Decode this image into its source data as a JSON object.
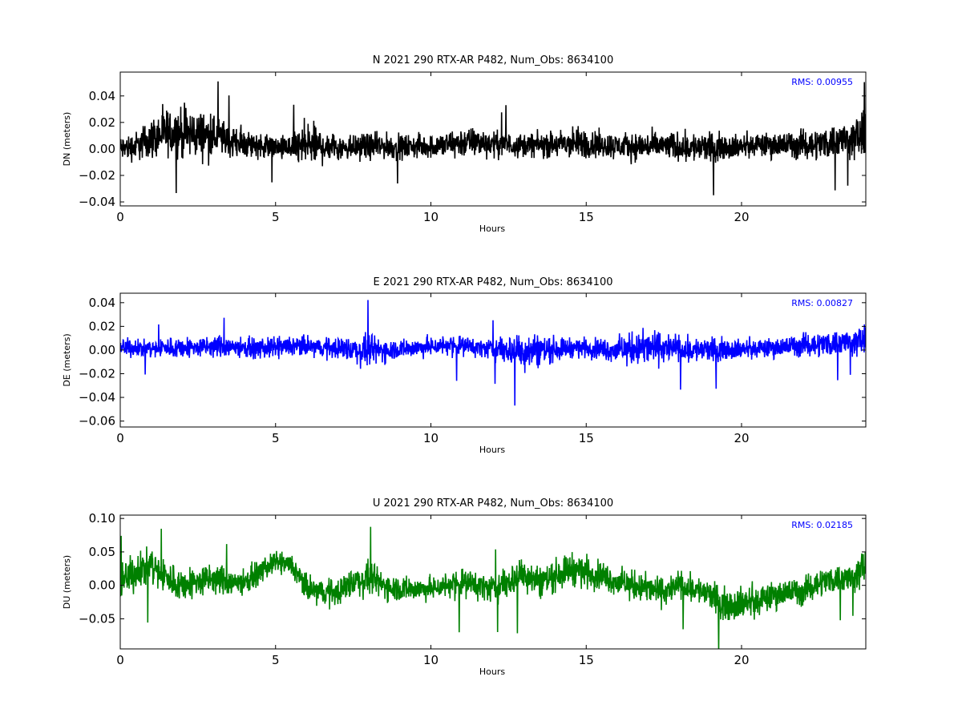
{
  "chart_data": [
    {
      "type": "line",
      "title": "N 2021 290 RTX-AR  P482, Num_Obs: 8634100",
      "xlabel": "Hours",
      "ylabel": "DN (meters)",
      "xlim": [
        0,
        24
      ],
      "ylim": [
        -0.043,
        0.058
      ],
      "xticks": [
        0,
        5,
        10,
        15,
        20
      ],
      "yticks": [
        -0.04,
        -0.02,
        0.0,
        0.02,
        0.04
      ],
      "ytick_labels": [
        "−0.04",
        "−0.02",
        "0.00",
        "0.02",
        "0.04"
      ],
      "grid": false,
      "legend": "none",
      "color": "#000000",
      "annotation": "RMS:  0.00955",
      "annotation_color": "#0000ff",
      "series": [
        {
          "x": [
            0,
            0.5,
            1,
            1.5,
            2,
            2.5,
            3,
            3.5,
            4,
            4.5,
            5,
            5.5,
            6,
            6.5,
            7,
            7.5,
            8,
            8.5,
            9,
            9.5,
            10,
            10.5,
            11,
            11.5,
            12,
            12.5,
            13,
            13.5,
            14,
            14.5,
            15,
            15.5,
            16,
            16.5,
            17,
            17.5,
            18,
            18.5,
            19,
            19.5,
            20,
            20.5,
            21,
            21.5,
            22,
            22.5,
            23,
            23.5,
            24
          ],
          "center": [
            0.0,
            0.002,
            0.008,
            0.012,
            0.012,
            0.011,
            0.01,
            0.006,
            0.004,
            0.003,
            0.001,
            0.0,
            0.003,
            0.002,
            0.002,
            0.002,
            0.002,
            0.002,
            0.001,
            0.002,
            0.002,
            0.003,
            0.005,
            0.005,
            0.004,
            0.003,
            0.003,
            0.003,
            0.003,
            0.004,
            0.004,
            0.003,
            0.002,
            0.002,
            0.002,
            0.002,
            0.002,
            0.001,
            0.001,
            0.002,
            0.002,
            0.003,
            0.003,
            0.003,
            0.003,
            0.004,
            0.006,
            0.008,
            0.01
          ],
          "spread": [
            0.014,
            0.016,
            0.022,
            0.026,
            0.028,
            0.026,
            0.025,
            0.018,
            0.016,
            0.014,
            0.012,
            0.016,
            0.026,
            0.02,
            0.016,
            0.014,
            0.014,
            0.014,
            0.014,
            0.013,
            0.013,
            0.015,
            0.017,
            0.016,
            0.014,
            0.013,
            0.013,
            0.013,
            0.015,
            0.018,
            0.017,
            0.015,
            0.014,
            0.015,
            0.016,
            0.015,
            0.016,
            0.017,
            0.016,
            0.014,
            0.013,
            0.013,
            0.014,
            0.015,
            0.016,
            0.017,
            0.019,
            0.022,
            0.024
          ]
        }
      ]
    },
    {
      "type": "line",
      "title": "E 2021 290 RTX-AR  P482, Num_Obs: 8634100",
      "xlabel": "Hours",
      "ylabel": "DE (meters)",
      "xlim": [
        0,
        24
      ],
      "ylim": [
        -0.065,
        0.048
      ],
      "xticks": [
        0,
        5,
        10,
        15,
        20
      ],
      "yticks": [
        -0.06,
        -0.04,
        -0.02,
        0.0,
        0.02,
        0.04
      ],
      "ytick_labels": [
        "−0.06",
        "−0.04",
        "−0.02",
        "0.00",
        "0.02",
        "0.04"
      ],
      "grid": false,
      "legend": "none",
      "color": "#0000ff",
      "annotation": "RMS:  0.00827",
      "annotation_color": "#0000ff",
      "series": [
        {
          "x": [
            0,
            0.5,
            1,
            1.5,
            2,
            2.5,
            3,
            3.5,
            4,
            4.5,
            5,
            5.5,
            6,
            6.5,
            7,
            7.5,
            8,
            8.5,
            9,
            9.5,
            10,
            10.5,
            11,
            11.5,
            12,
            12.5,
            13,
            13.5,
            14,
            14.5,
            15,
            15.5,
            16,
            16.5,
            17,
            17.5,
            18,
            18.5,
            19,
            19.5,
            20,
            20.5,
            21,
            21.5,
            22,
            22.5,
            23,
            23.5,
            24
          ],
          "center": [
            0.002,
            0.002,
            0.001,
            0.002,
            0.002,
            0.002,
            0.003,
            0.003,
            0.002,
            0.001,
            0.002,
            0.003,
            0.003,
            0.002,
            0.002,
            0.0,
            -0.001,
            0.0,
            0.001,
            0.002,
            0.003,
            0.004,
            0.004,
            0.002,
            0.001,
            0.0,
            0.0,
            0.0,
            0.001,
            0.002,
            0.002,
            0.001,
            0.0,
            0.001,
            0.002,
            0.002,
            0.001,
            0.0,
            0.0,
            0.001,
            0.001,
            0.001,
            0.002,
            0.003,
            0.004,
            0.005,
            0.006,
            0.007,
            0.008
          ],
          "spread": [
            0.012,
            0.011,
            0.012,
            0.013,
            0.013,
            0.012,
            0.014,
            0.013,
            0.012,
            0.012,
            0.013,
            0.013,
            0.013,
            0.012,
            0.013,
            0.017,
            0.019,
            0.015,
            0.012,
            0.012,
            0.012,
            0.012,
            0.012,
            0.011,
            0.013,
            0.018,
            0.025,
            0.02,
            0.015,
            0.012,
            0.012,
            0.013,
            0.016,
            0.02,
            0.022,
            0.018,
            0.016,
            0.016,
            0.015,
            0.013,
            0.012,
            0.012,
            0.012,
            0.013,
            0.014,
            0.015,
            0.016,
            0.017,
            0.018
          ]
        }
      ]
    },
    {
      "type": "line",
      "title": "U 2021 290 RTX-AR  P482, Num_Obs: 8634100",
      "xlabel": "Hours",
      "ylabel": "DU (meters)",
      "xlim": [
        0,
        24
      ],
      "ylim": [
        -0.095,
        0.105
      ],
      "xticks": [
        0,
        5,
        10,
        15,
        20
      ],
      "yticks": [
        -0.05,
        0.0,
        0.05,
        0.1
      ],
      "ytick_labels": [
        "−0.05",
        "0.00",
        "0.05",
        "0.10"
      ],
      "grid": false,
      "legend": "none",
      "color": "#008000",
      "annotation": "RMS:  0.02185",
      "annotation_color": "#0000ff",
      "series": [
        {
          "x": [
            0,
            0.5,
            1,
            1.5,
            2,
            2.5,
            3,
            3.5,
            4,
            4.5,
            5,
            5.5,
            6,
            6.5,
            7,
            7.5,
            8,
            8.5,
            9,
            9.5,
            10,
            10.5,
            11,
            11.5,
            12,
            12.5,
            13,
            13.5,
            14,
            14.5,
            15,
            15.5,
            16,
            16.5,
            17,
            17.5,
            18,
            18.5,
            19,
            19.5,
            20,
            20.5,
            21,
            21.5,
            22,
            22.5,
            23,
            23.5,
            24
          ],
          "center": [
            0.005,
            0.02,
            0.03,
            0.01,
            0.0,
            0.005,
            0.01,
            0.005,
            0.005,
            0.02,
            0.035,
            0.03,
            -0.005,
            -0.01,
            -0.01,
            0.005,
            0.01,
            0.0,
            -0.005,
            -0.005,
            -0.005,
            0.0,
            0.005,
            0.0,
            -0.005,
            0.005,
            0.02,
            0.005,
            0.015,
            0.025,
            0.02,
            0.015,
            0.005,
            0.0,
            -0.005,
            -0.01,
            0.0,
            -0.005,
            -0.015,
            -0.03,
            -0.025,
            -0.025,
            -0.015,
            -0.01,
            -0.01,
            0.005,
            0.01,
            0.01,
            0.03
          ],
          "spread": [
            0.04,
            0.04,
            0.045,
            0.04,
            0.035,
            0.035,
            0.035,
            0.03,
            0.028,
            0.025,
            0.022,
            0.025,
            0.03,
            0.03,
            0.028,
            0.035,
            0.035,
            0.03,
            0.03,
            0.025,
            0.025,
            0.028,
            0.03,
            0.03,
            0.03,
            0.035,
            0.04,
            0.035,
            0.035,
            0.035,
            0.035,
            0.03,
            0.03,
            0.032,
            0.032,
            0.03,
            0.03,
            0.03,
            0.032,
            0.035,
            0.035,
            0.035,
            0.03,
            0.03,
            0.03,
            0.03,
            0.03,
            0.035,
            0.04
          ]
        }
      ]
    }
  ]
}
